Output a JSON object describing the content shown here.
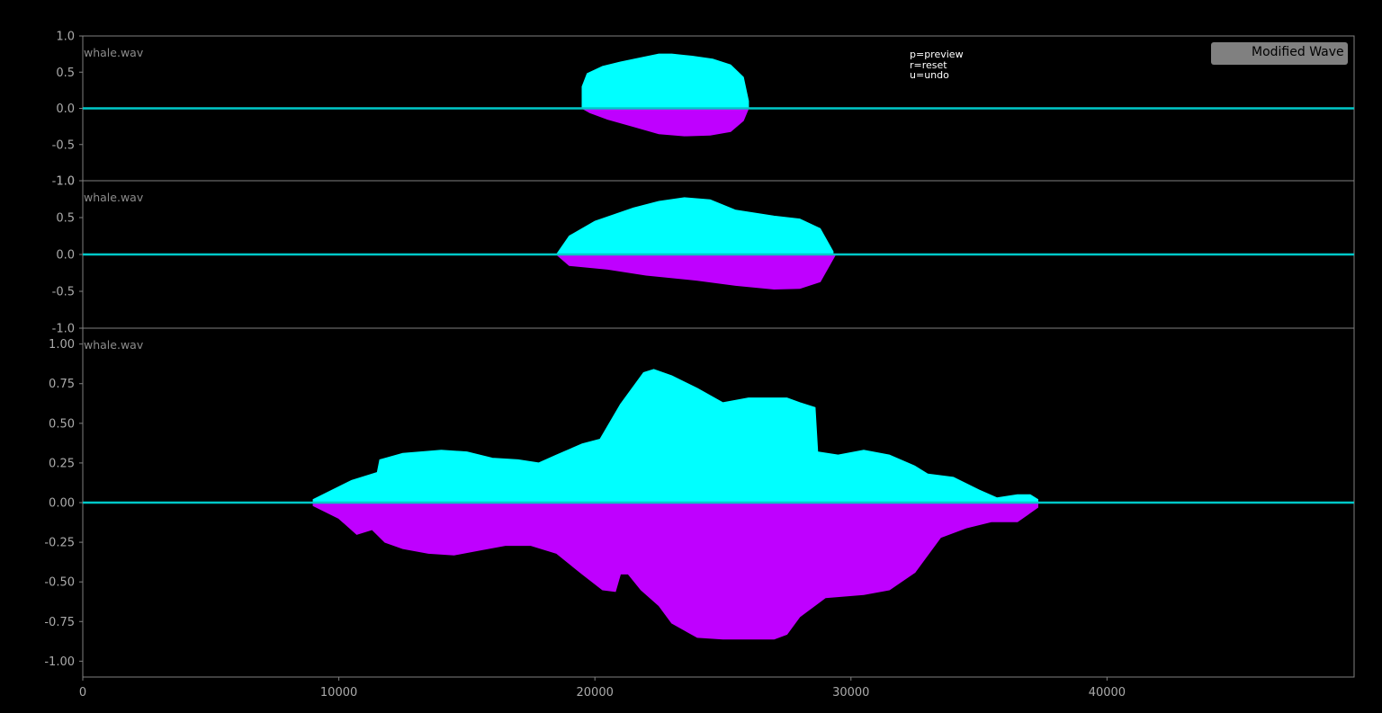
{
  "annotation": [
    "p=preview",
    "r=reset",
    "u=undo"
  ],
  "legend": {
    "label": "Modified Wave"
  },
  "colors": {
    "background": "#000000",
    "positive": "#00ffff",
    "negative": "#bf00ff",
    "baseline": "#00c8c8",
    "axis": "#808080",
    "tick_text": "#aaaaaa",
    "legend_bg": "#808080"
  },
  "chart_data": [
    {
      "type": "area",
      "title": "whale.wav",
      "ylim": [
        -1.0,
        1.0
      ],
      "yticks": [
        "1.0",
        "0.5",
        "0.0",
        "-0.5",
        "-1.0"
      ],
      "xlim": [
        0,
        49650
      ],
      "series": [
        {
          "x": [
            19500,
            19700,
            20300,
            21000,
            21800,
            22500,
            23000,
            23800,
            24600,
            25300,
            25800,
            26000
          ],
          "values": [
            0.3,
            0.48,
            0.58,
            0.64,
            0.7,
            0.75,
            0.75,
            0.72,
            0.68,
            0.6,
            0.43,
            0.1
          ]
        },
        {
          "x": [
            19500,
            19800,
            20500,
            21500,
            22500,
            23500,
            24500,
            25300,
            25800,
            26000
          ],
          "values": [
            0.0,
            -0.06,
            -0.15,
            -0.25,
            -0.35,
            -0.38,
            -0.37,
            -0.32,
            -0.17,
            0.0
          ]
        }
      ]
    },
    {
      "type": "area",
      "title": "whale.wav",
      "ylim": [
        -1.0,
        1.0
      ],
      "yticks": [
        "1.0",
        "0.5",
        "0.0",
        "-0.5",
        "-1.0"
      ],
      "xlim": [
        0,
        49650
      ],
      "series": [
        {
          "x": [
            18500,
            19000,
            20000,
            21500,
            22500,
            23500,
            24500,
            25500,
            27000,
            28000,
            28800,
            29300
          ],
          "values": [
            0.0,
            0.25,
            0.45,
            0.63,
            0.72,
            0.77,
            0.74,
            0.6,
            0.52,
            0.48,
            0.35,
            0.04
          ]
        },
        {
          "x": [
            18500,
            19000,
            20500,
            22000,
            24000,
            25500,
            27000,
            28000,
            28800,
            29400
          ],
          "values": [
            0.0,
            -0.15,
            -0.2,
            -0.28,
            -0.35,
            -0.42,
            -0.47,
            -0.46,
            -0.37,
            0.0
          ]
        }
      ]
    },
    {
      "type": "area",
      "title": "whale.wav",
      "ylim": [
        -1.1,
        1.1
      ],
      "yticks": [
        "1.00",
        "0.75",
        "0.50",
        "0.25",
        "0.00",
        "-0.25",
        "-0.50",
        "-0.75",
        "-1.00"
      ],
      "xlim": [
        0,
        49650
      ],
      "xticks": [
        "0",
        "10000",
        "20000",
        "30000",
        "40000"
      ],
      "series": [
        {
          "x": [
            9000,
            10500,
            11500,
            11600,
            12500,
            14000,
            15000,
            16000,
            17000,
            17800,
            18500,
            19500,
            20200,
            21000,
            21900,
            22300,
            23000,
            24000,
            25000,
            26000,
            27500,
            28000,
            28600,
            28700,
            29500,
            30500,
            31500,
            32500,
            33000,
            34000,
            35000,
            35700,
            36500,
            37000,
            37300
          ],
          "values": [
            0.02,
            0.14,
            0.19,
            0.27,
            0.31,
            0.33,
            0.32,
            0.28,
            0.27,
            0.25,
            0.3,
            0.37,
            0.4,
            0.62,
            0.82,
            0.84,
            0.8,
            0.72,
            0.63,
            0.66,
            0.66,
            0.63,
            0.6,
            0.32,
            0.3,
            0.33,
            0.3,
            0.23,
            0.18,
            0.16,
            0.08,
            0.03,
            0.05,
            0.05,
            0.02
          ]
        },
        {
          "x": [
            9000,
            10000,
            10700,
            11300,
            11800,
            12500,
            13500,
            14500,
            15500,
            16500,
            17500,
            18500,
            19500,
            20300,
            20800,
            21000,
            21300,
            21800,
            22500,
            23000,
            24000,
            25000,
            26000,
            27000,
            27500,
            28000,
            29000,
            30500,
            31500,
            32500,
            33500,
            34500,
            35500,
            36500,
            37300
          ],
          "values": [
            -0.02,
            -0.1,
            -0.2,
            -0.17,
            -0.25,
            -0.29,
            -0.32,
            -0.33,
            -0.3,
            -0.27,
            -0.27,
            -0.32,
            -0.45,
            -0.55,
            -0.56,
            -0.45,
            -0.45,
            -0.55,
            -0.65,
            -0.76,
            -0.85,
            -0.86,
            -0.86,
            -0.86,
            -0.83,
            -0.72,
            -0.6,
            -0.58,
            -0.55,
            -0.44,
            -0.22,
            -0.16,
            -0.12,
            -0.12,
            -0.03
          ]
        }
      ]
    }
  ]
}
